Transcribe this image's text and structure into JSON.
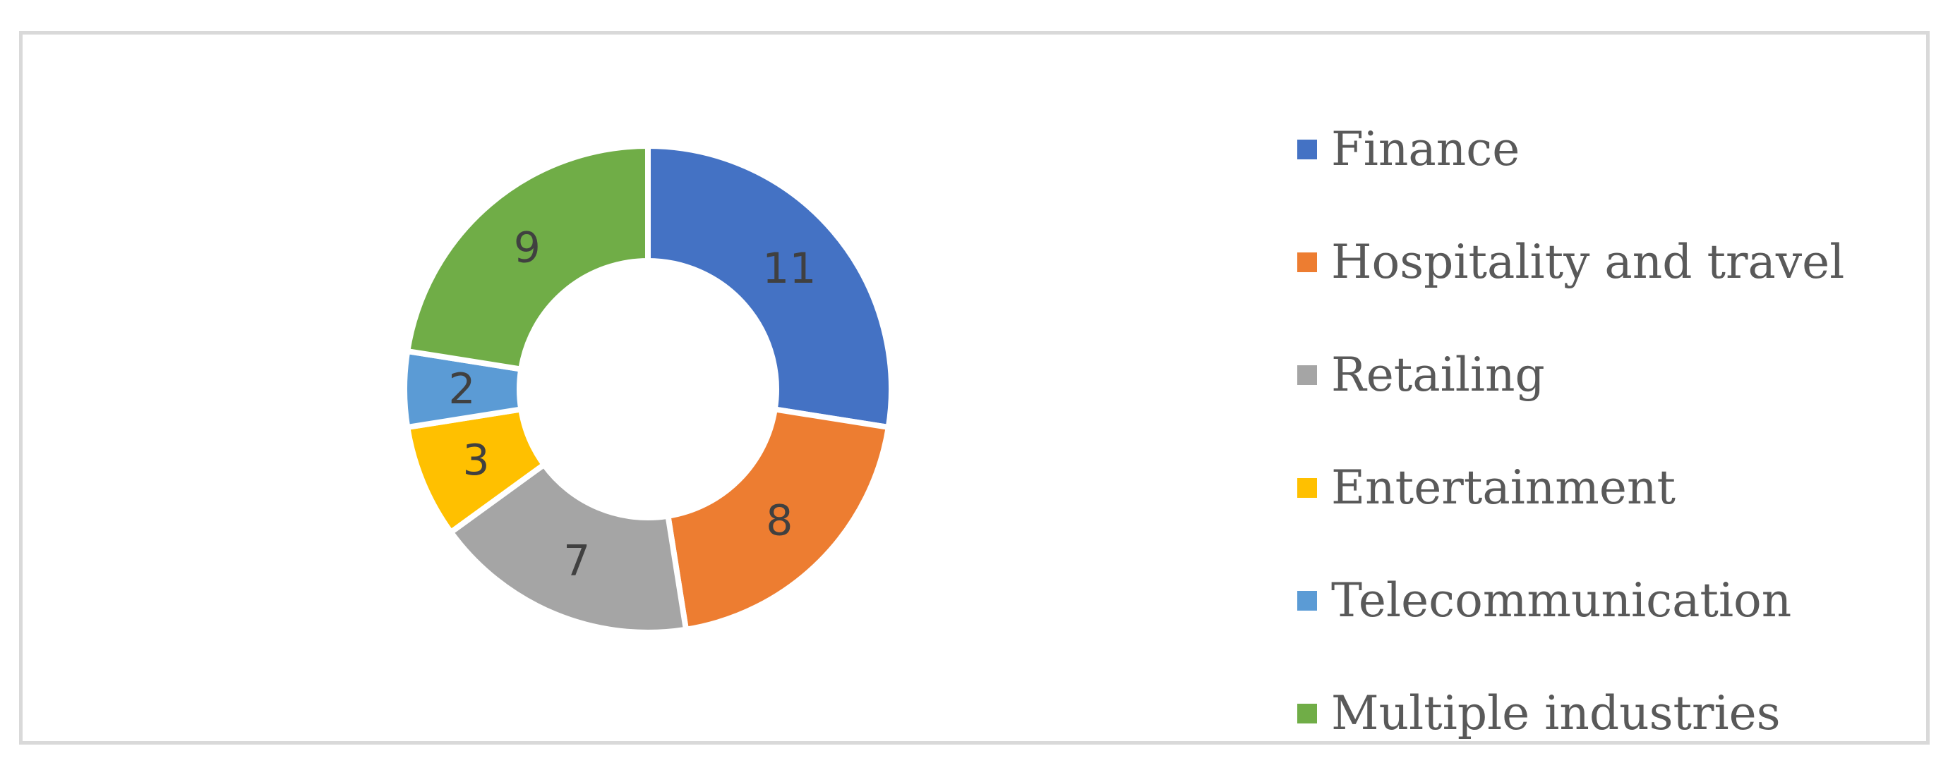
{
  "chart_data": {
    "type": "pie",
    "variant": "donut",
    "categories": [
      "Finance",
      "Hospitality and travel",
      "Retailing",
      "Entertainment",
      "Telecommunication",
      "Multiple industries"
    ],
    "values": [
      11,
      8,
      7,
      3,
      2,
      9
    ],
    "colors": [
      "#4472C4",
      "#ED7D31",
      "#A5A5A5",
      "#FFC000",
      "#5B9BD5",
      "#70AD47"
    ],
    "data_labels": [
      "11",
      "8",
      "7",
      "3",
      "2",
      "9"
    ],
    "legend_position": "right",
    "title": ""
  }
}
